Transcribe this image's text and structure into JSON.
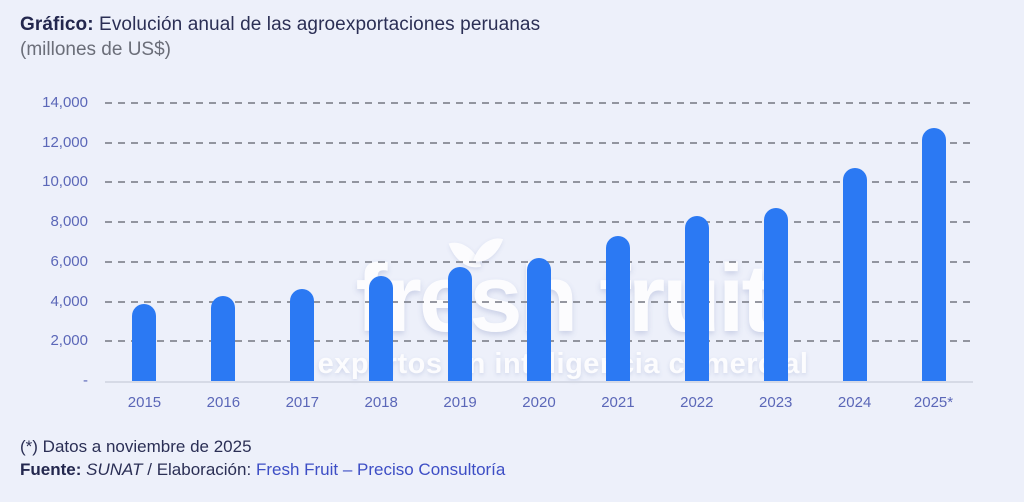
{
  "header": {
    "title_bold": "Gráfico:",
    "title_rest": "Evolución anual de las agroexportaciones peruanas",
    "subtitle": "(millones de US$)"
  },
  "watermark": {
    "line1": "fresh fruit",
    "line2": "expertos en inteligencia comercial"
  },
  "chart_data": {
    "type": "bar",
    "title": "Evolución anual de las agroexportaciones peruanas (millones de US$)",
    "categories": [
      "2015",
      "2016",
      "2017",
      "2018",
      "2019",
      "2020",
      "2021",
      "2022",
      "2023",
      "2024",
      "2025*"
    ],
    "values": [
      3900,
      4300,
      4650,
      5300,
      5750,
      6200,
      7300,
      8300,
      8700,
      10750,
      12750
    ],
    "xlabel": "",
    "ylabel": "millones de US$",
    "ylim": [
      0,
      14000
    ],
    "ytick_step": 2000,
    "ytick_labels": [
      "-",
      "2,000",
      "4,000",
      "6,000",
      "8,000",
      "10,000",
      "12,000",
      "14,000"
    ],
    "grid": "horizontal-dashed",
    "legend": "none",
    "bar_color": "#2b79f3"
  },
  "footer": {
    "note": "(*) Datos a noviembre de 2025",
    "source_label": "Fuente:",
    "source_value": "SUNAT",
    "separator": "/",
    "elaboration_label": "Elaboración:",
    "elaboration_value": "Fresh Fruit – Preciso Consultoría"
  },
  "colors": {
    "background": "#edf0fa",
    "bar": "#2b79f3",
    "title_navy": "#23274e",
    "axis_label": "#5b67b8",
    "gridline": "#7b7e88",
    "accent_blue": "#3d4ec5",
    "subtitle_gray": "#6b6e79"
  }
}
